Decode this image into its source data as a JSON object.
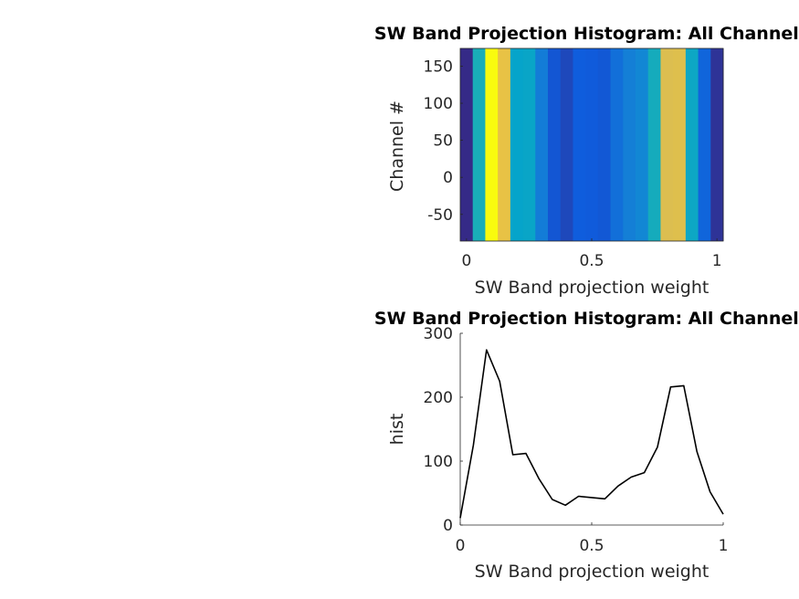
{
  "chart_data": [
    {
      "type": "heatmap",
      "title": "SW Band Projection Histogram: All Channels",
      "xlabel": "SW Band projection weight",
      "ylabel": "Channel #",
      "xlim": [
        -0.025,
        1.025
      ],
      "ylim": [
        -86,
        174
      ],
      "xticks": [
        "0",
        "0.5",
        "1"
      ],
      "yticks": [
        "-50",
        "0",
        "50",
        "100",
        "150"
      ],
      "colormap": "parula",
      "x": [
        0,
        0.05,
        0.1,
        0.15,
        0.2,
        0.25,
        0.3,
        0.35,
        0.4,
        0.45,
        0.5,
        0.55,
        0.6,
        0.65,
        0.7,
        0.75,
        0.8,
        0.85,
        0.9,
        0.95,
        1.0
      ],
      "values": [
        11,
        125,
        274,
        225,
        110,
        112,
        72,
        40,
        31,
        45,
        43,
        41,
        61,
        75,
        82,
        122,
        216,
        218,
        115,
        52,
        17
      ],
      "grid": false
    },
    {
      "type": "line",
      "title": "SW Band Projection Histogram: All Channels",
      "xlabel": "SW Band projection weight",
      "ylabel": "hist",
      "xlim": [
        0,
        1
      ],
      "ylim": [
        0,
        300
      ],
      "xticks": [
        "0",
        "0.5",
        "1"
      ],
      "yticks": [
        "0",
        "100",
        "200",
        "300"
      ],
      "color": "#000000",
      "x": [
        0,
        0.05,
        0.1,
        0.15,
        0.2,
        0.25,
        0.3,
        0.35,
        0.4,
        0.45,
        0.5,
        0.55,
        0.6,
        0.65,
        0.7,
        0.75,
        0.8,
        0.85,
        0.9,
        0.95,
        1.0
      ],
      "y": [
        11,
        125,
        274,
        225,
        110,
        112,
        72,
        40,
        31,
        45,
        43,
        41,
        61,
        75,
        82,
        122,
        216,
        218,
        115,
        52,
        17
      ],
      "grid": false
    }
  ]
}
